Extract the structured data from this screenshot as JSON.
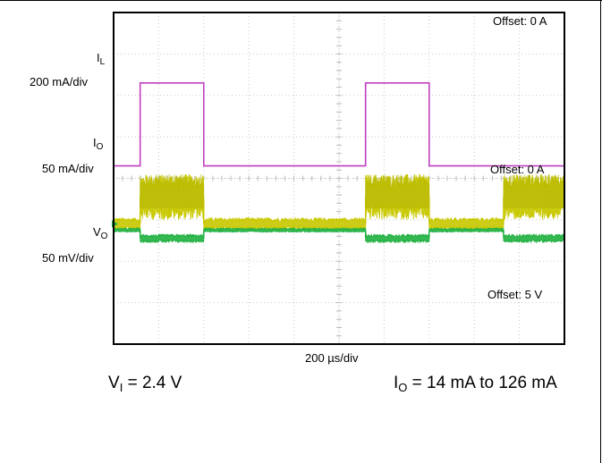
{
  "chart_data": {
    "type": "line",
    "title": "",
    "grid": true,
    "grid_divisions": {
      "x": 10,
      "y": 8
    },
    "time_base": {
      "text": "200 µs/div",
      "value_us_per_div": 200
    },
    "x_range_us": [
      0,
      2000
    ],
    "series": [
      {
        "name": "IL",
        "label_main": "I",
        "label_sub": "L",
        "scale_text": "200 mA/div",
        "offset_text": "Offset: 0 A",
        "color": "#c8c800",
        "segments_x_us": [
          0,
          118,
          400,
          1118,
          1400,
          1730,
          2000
        ],
        "segments_level_div": [
          2.9,
          3.55,
          2.9,
          3.55,
          2.9,
          3.55
        ],
        "noise_div": [
          0.15,
          0.55,
          0.15,
          0.55,
          0.15,
          0.55
        ]
      },
      {
        "name": "IO",
        "label_main": "I",
        "label_sub": "O",
        "scale_text": "50 mA/div",
        "offset_text": "Offset: 0 A",
        "color": "#c040c0",
        "values_mA": [
          14,
          126
        ],
        "x_us": [
          0,
          118,
          118,
          400,
          400,
          1118,
          1118,
          1400,
          1400,
          2000
        ],
        "y_div": [
          4.3,
          4.3,
          6.3,
          6.3,
          4.3,
          4.3,
          6.3,
          6.3,
          4.3,
          4.3
        ]
      },
      {
        "name": "VO",
        "label_main": "V",
        "label_sub": "O",
        "scale_text": "50 mV/div",
        "offset_text": "Offset: 5 V",
        "color": "#20b040",
        "segments_x_us": [
          0,
          118,
          400,
          1118,
          1400,
          1730,
          2000
        ],
        "segments_level_div": [
          2.75,
          2.55,
          2.75,
          2.55,
          2.75,
          2.55
        ],
        "noise_div": [
          0.05,
          0.1,
          0.05,
          0.1,
          0.05,
          0.1
        ]
      }
    ]
  },
  "conditions": {
    "vi_main": "V",
    "vi_sub": "I",
    "vi_value": " = 2.4 V",
    "io_main": "I",
    "io_sub": "O",
    "io_value": " = 14 mA to 126 mA"
  }
}
